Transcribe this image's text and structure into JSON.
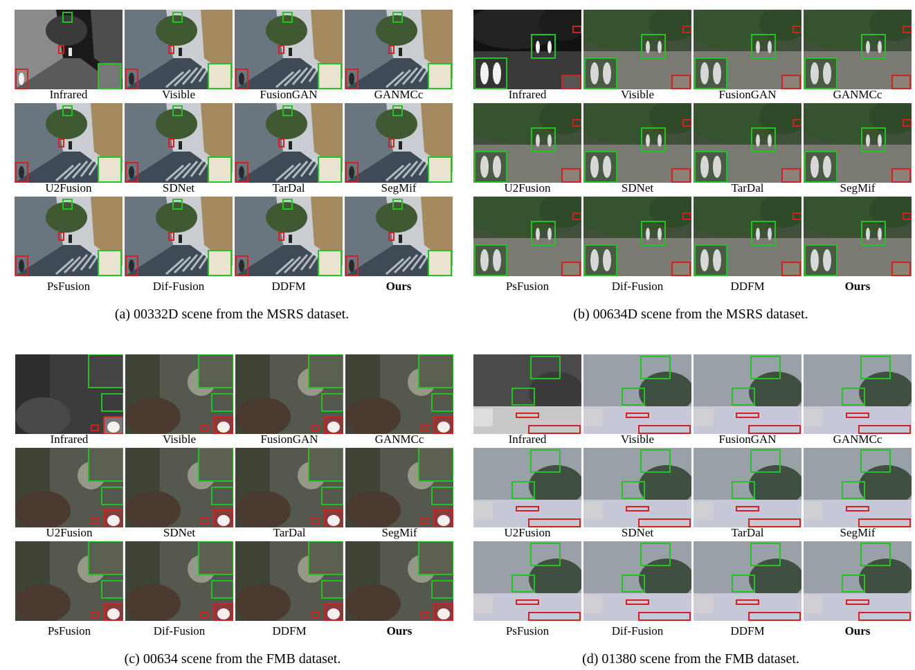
{
  "panels": [
    {
      "caption": "(a) 00332D scene from the MSRS dataset.",
      "scene": "street",
      "labels": [
        "Infrared",
        "Visible",
        "FusionGAN",
        "GANMCc",
        "U2Fusion",
        "SDNet",
        "TarDal",
        "SegMif",
        "PsFusion",
        "Dif-Fusion",
        "DDFM",
        "Ours"
      ]
    },
    {
      "caption": "(b) 00634D scene from the MSRS dataset.",
      "scene": "park",
      "labels": [
        "Infrared",
        "Visible",
        "FusionGAN",
        "GANMCc",
        "U2Fusion",
        "SDNet",
        "TarDal",
        "SegMif",
        "PsFusion",
        "Dif-Fusion",
        "DDFM",
        "Ours"
      ]
    },
    {
      "caption": "(c) 00634 scene from the FMB dataset.",
      "scene": "night",
      "labels": [
        "Infrared",
        "Visible",
        "FusionGAN",
        "GANMCc",
        "U2Fusion",
        "SDNet",
        "TarDal",
        "SegMif",
        "PsFusion",
        "Dif-Fusion",
        "DDFM",
        "Ours"
      ]
    },
    {
      "caption": "(d) 01380 scene from the FMB dataset.",
      "scene": "road",
      "labels": [
        "Infrared",
        "Visible",
        "FusionGAN",
        "GANMCc",
        "U2Fusion",
        "SDNet",
        "TarDal",
        "SegMif",
        "PsFusion",
        "Dif-Fusion",
        "DDFM",
        "Ours"
      ]
    }
  ],
  "colors": {
    "highlight_green": "#22c322",
    "highlight_red": "#d42020"
  }
}
